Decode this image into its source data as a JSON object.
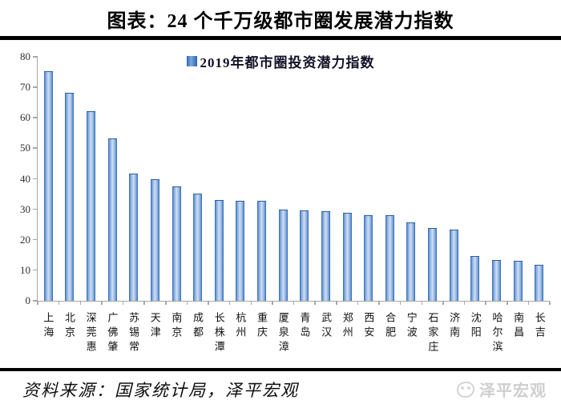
{
  "title": "图表：24 个千万级都市圈发展潜力指数",
  "legend": {
    "label": "2019年都市圈投资潜力指数"
  },
  "footer": {
    "source": "资料来源：国家统计局，泽平宏观",
    "watermark": "泽平宏观"
  },
  "colors": {
    "bar_edge": "#2a64b4",
    "bar_center": "#cfdff2",
    "axis": "#a6a6a6",
    "rule": "#000000",
    "legend_text": "#111126",
    "watermark": "#cfcfcf"
  },
  "chart_data": {
    "type": "bar",
    "title": "图表：24 个千万级都市圈发展潜力指数",
    "legend": [
      "2019年都市圈投资潜力指数"
    ],
    "legend_position": "top-center",
    "grid": false,
    "xlabel": "",
    "ylabel": "",
    "ylim": [
      0,
      80
    ],
    "ytick_step": 10,
    "categories": [
      "上海",
      "北京",
      "深莞惠",
      "广佛肇",
      "苏锡常",
      "天津",
      "南京",
      "成都",
      "长株潭",
      "杭州",
      "重庆",
      "厦泉漳",
      "青岛",
      "武汉",
      "郑州",
      "西安",
      "合肥",
      "宁波",
      "石家庄",
      "济南",
      "沈阳",
      "哈尔滨",
      "南昌",
      "长吉"
    ],
    "values": [
      75,
      68,
      62,
      53,
      41.5,
      39.5,
      37.3,
      35,
      32.8,
      32.5,
      32.5,
      29.6,
      29.3,
      29,
      28.5,
      27.8,
      27.8,
      25.5,
      23.5,
      23,
      14.5,
      13.2,
      12.8,
      11.5
    ]
  }
}
